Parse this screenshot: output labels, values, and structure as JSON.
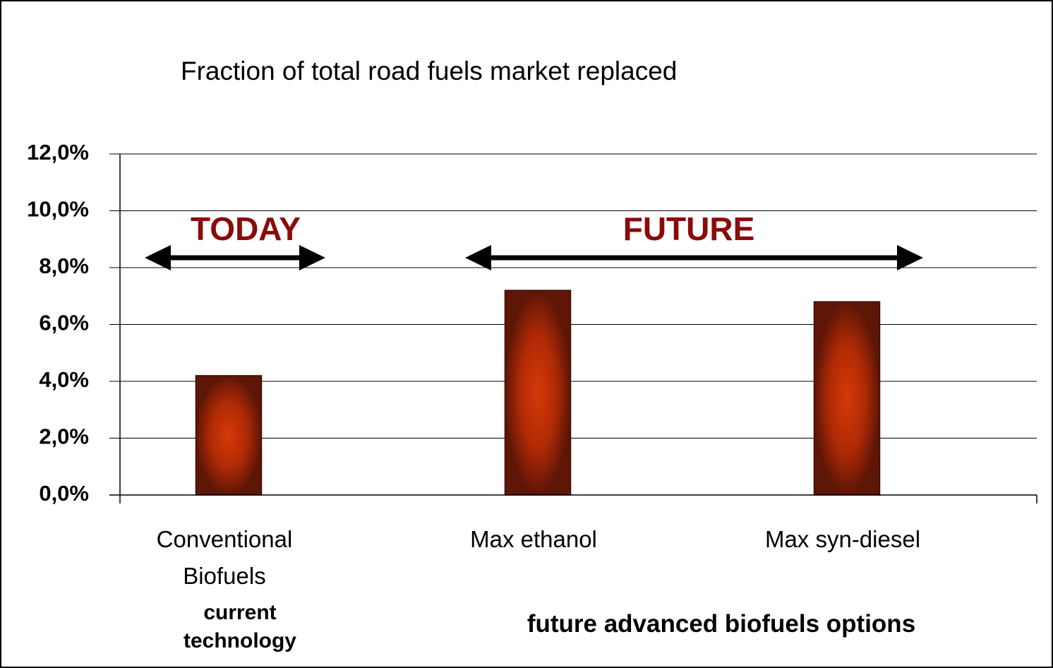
{
  "chart_data": {
    "type": "bar",
    "title": "Fraction of total road fuels market replaced",
    "categories": [
      "Conventional Biofuels",
      "Max ethanol",
      "Max syn-diesel"
    ],
    "values": [
      4.2,
      7.2,
      6.8
    ],
    "color": "#cc3300",
    "ylim": [
      0,
      12
    ],
    "yticks": [
      {
        "value": 0,
        "label": "0,0%"
      },
      {
        "value": 2,
        "label": "2,0%"
      },
      {
        "value": 4,
        "label": "4,0%"
      },
      {
        "value": 6,
        "label": "6,0%"
      },
      {
        "value": 8,
        "label": "8,0%"
      },
      {
        "value": 10,
        "label": "10,0%"
      },
      {
        "value": 12,
        "label": "12,0%"
      }
    ],
    "grid": true,
    "annotations": [
      "TODAY",
      "FUTURE",
      "current technology",
      "future advanced biofuels options"
    ]
  }
}
